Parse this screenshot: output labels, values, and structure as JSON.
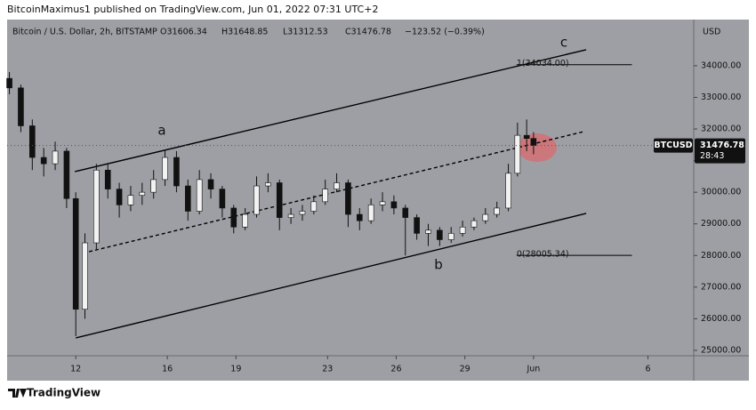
{
  "header": {
    "publisher": "BitcoinMaximus1 published on TradingView.com, Jun 01, 2022 07:31 UTC+2",
    "footer": "TradingView"
  },
  "chart_data": {
    "type": "candlestick",
    "symbol": "Bitcoin / U.S. Dollar, 2h, BITSTAMP",
    "ohlc_legend": {
      "open": "O31606.34",
      "high": "H31648.85",
      "low": "L31312.53",
      "close": "C31476.78",
      "change": "−123.52 (−0.39%)"
    },
    "currency": "USD",
    "ticker": "BTCUSD",
    "last_price": 31476.78,
    "countdown": "28:43",
    "up_color": "#f2f2f2",
    "down_color": "#111111",
    "background": "#9e9fa4",
    "xlim": [
      9,
      39
    ],
    "ylim": [
      24830,
      35460
    ],
    "xticks": [
      12,
      16,
      19,
      23,
      26,
      29,
      {
        "value": 32,
        "label": "Jun"
      },
      {
        "value": 37,
        "label": "6"
      }
    ],
    "yticks": [
      {
        "value": 25000,
        "label": "25000.00"
      },
      {
        "value": 26000,
        "label": "26000.00"
      },
      {
        "value": 27000,
        "label": "27000.00"
      },
      {
        "value": 28000,
        "label": "28000.00"
      },
      {
        "value": 29000,
        "label": "29000.00"
      },
      {
        "value": 30000,
        "label": "30000.00"
      },
      {
        "value": 31000,
        "label": "31000.00"
      },
      {
        "value": 32000,
        "label": "32000.00"
      },
      {
        "value": 33000,
        "label": "33000.00"
      },
      {
        "value": 34000,
        "label": "34000.00"
      }
    ],
    "grid": false,
    "x": [
      9.1,
      9.6,
      10.1,
      10.6,
      11.1,
      11.6,
      12.0,
      12.4,
      12.9,
      13.4,
      13.9,
      14.4,
      14.9,
      15.4,
      15.9,
      16.4,
      16.9,
      17.4,
      17.9,
      18.4,
      18.9,
      19.4,
      19.9,
      20.4,
      20.9,
      21.4,
      21.9,
      22.4,
      22.9,
      23.4,
      23.9,
      24.4,
      24.9,
      25.4,
      25.9,
      26.4,
      26.9,
      27.4,
      27.9,
      28.4,
      28.9,
      29.4,
      29.9,
      30.4,
      30.9,
      31.3,
      31.7,
      32.0
    ],
    "open": [
      33600,
      33300,
      32100,
      31100,
      30900,
      31300,
      29800,
      26300,
      28400,
      30700,
      30100,
      29600,
      29900,
      30000,
      30400,
      31100,
      30200,
      29400,
      30400,
      30100,
      29500,
      28900,
      29300,
      30200,
      30300,
      29200,
      29300,
      29400,
      29700,
      30100,
      30300,
      29300,
      29100,
      29600,
      29700,
      29500,
      29200,
      28700,
      28800,
      28500,
      28700,
      28900,
      29100,
      29300,
      29500,
      30600,
      31800,
      31700
    ],
    "high": [
      33800,
      33400,
      32300,
      31400,
      31600,
      31400,
      30000,
      28700,
      30900,
      30900,
      30300,
      30200,
      30300,
      30700,
      31350,
      31300,
      30400,
      30700,
      30600,
      30200,
      29600,
      29500,
      30500,
      30600,
      30400,
      29500,
      29600,
      29900,
      30400,
      30600,
      30400,
      29500,
      29800,
      30000,
      29900,
      29600,
      29300,
      29000,
      28900,
      28900,
      29100,
      29200,
      29500,
      29700,
      30900,
      32200,
      32300,
      31900
    ],
    "low": [
      33100,
      31900,
      30700,
      30500,
      30700,
      29500,
      25450,
      26000,
      28200,
      29800,
      29200,
      29400,
      29600,
      29800,
      30200,
      30000,
      29100,
      29300,
      29800,
      29200,
      28700,
      28800,
      29200,
      30000,
      28800,
      29000,
      29100,
      29300,
      29600,
      30000,
      28900,
      28800,
      29000,
      29400,
      29300,
      28000,
      28500,
      28300,
      28300,
      28400,
      28600,
      28800,
      29000,
      29200,
      29400,
      30500,
      31300,
      31200
    ],
    "close": [
      33300,
      32100,
      31100,
      30900,
      31300,
      29800,
      26300,
      28400,
      30700,
      30100,
      29600,
      29900,
      30000,
      30400,
      31100,
      30200,
      29400,
      30400,
      30100,
      29500,
      28900,
      29300,
      30200,
      30300,
      29200,
      29300,
      29400,
      29700,
      30100,
      30300,
      29300,
      29100,
      29600,
      29700,
      29500,
      29200,
      28700,
      28800,
      28500,
      28700,
      28900,
      29100,
      29300,
      29500,
      30600,
      31800,
      31700,
      31480
    ],
    "trendlines": [
      {
        "x": [
          11.96,
          34.3
        ],
        "y": [
          30653,
          34506
        ],
        "style": "solid"
      },
      {
        "x": [
          12.0,
          34.3
        ],
        "y": [
          25393,
          29330
        ],
        "style": "solid"
      },
      {
        "x": [
          12.58,
          34.2
        ],
        "y": [
          28121,
          31918
        ],
        "style": "dashed"
      }
    ],
    "fib_levels": [
      {
        "label": "1(34034.00)",
        "value": 34034,
        "x": [
          31.26,
          36.3
        ]
      },
      {
        "label": "0(28005.34)",
        "value": 28005.34,
        "x": [
          31.26,
          36.3
        ]
      }
    ],
    "annotations": [
      "a",
      "b",
      "c"
    ]
  }
}
